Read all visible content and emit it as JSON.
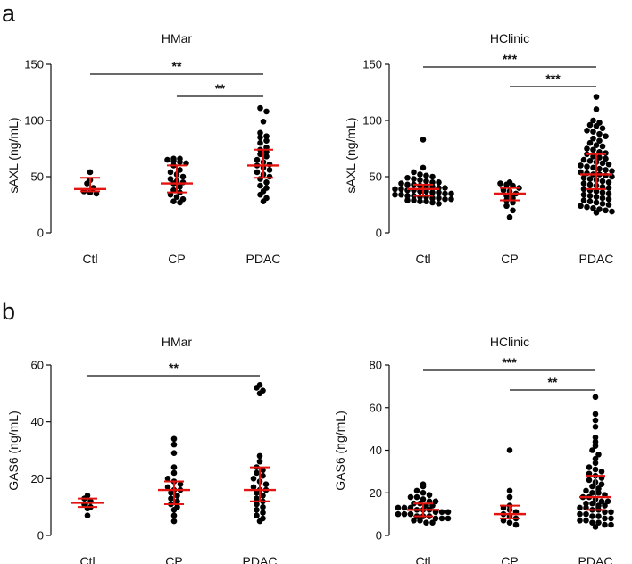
{
  "panel_labels": [
    "a",
    "b"
  ],
  "chart_data": [
    {
      "panel": "a",
      "type": "scatter",
      "title": "HMar",
      "ylabel": "sAXL (ng/mL)",
      "categories": [
        "Ctl",
        "CP",
        "PDAC"
      ],
      "ylim": [
        0,
        150
      ],
      "yticks": [
        0,
        50,
        100,
        150
      ],
      "summary": [
        {
          "category": "Ctl",
          "median": 39,
          "q1": 37,
          "q3": 49
        },
        {
          "category": "CP",
          "median": 44,
          "q1": 36,
          "q3": 60
        },
        {
          "category": "PDAC",
          "median": 60,
          "q1": 49,
          "q3": 74
        }
      ],
      "points": [
        [
          54,
          47,
          44,
          40,
          37,
          36,
          35
        ],
        [
          66,
          66,
          65,
          64,
          63,
          62,
          60,
          56,
          54,
          52,
          50,
          48,
          46,
          45,
          44,
          41,
          38,
          36,
          34,
          32,
          30,
          28,
          27
        ],
        [
          111,
          108,
          99,
          89,
          86,
          85,
          82,
          80,
          76,
          74,
          72,
          70,
          68,
          65,
          63,
          61,
          60,
          58,
          56,
          54,
          52,
          50,
          48,
          45,
          42,
          40,
          37,
          34,
          31,
          28
        ]
      ],
      "significance": [
        {
          "from": "Ctl",
          "to": "PDAC",
          "label": "**"
        },
        {
          "from": "CP",
          "to": "PDAC",
          "label": "**"
        }
      ],
      "colors": {
        "points": "#000000",
        "summary": "#e3140f"
      }
    },
    {
      "panel": "a",
      "type": "scatter",
      "title": "HClinic",
      "ylabel": "sAXL (ng/mL)",
      "categories": [
        "Ctl",
        "CP",
        "PDAC"
      ],
      "ylim": [
        0,
        150
      ],
      "yticks": [
        0,
        50,
        100,
        150
      ],
      "summary": [
        {
          "category": "Ctl",
          "median": 39,
          "q1": 33,
          "q3": 43
        },
        {
          "category": "CP",
          "median": 35,
          "q1": 29,
          "q3": 40
        },
        {
          "category": "PDAC",
          "median": 52,
          "q1": 39,
          "q3": 70
        }
      ],
      "points": [
        [
          83,
          58,
          54,
          52,
          51,
          50,
          49,
          48,
          47,
          46,
          45,
          45,
          44,
          43,
          43,
          42,
          41,
          41,
          40,
          40,
          39,
          39,
          38,
          38,
          37,
          37,
          36,
          36,
          35,
          35,
          34,
          34,
          33,
          33,
          32,
          32,
          31,
          31,
          30,
          30,
          29,
          29,
          28,
          28,
          27,
          26
        ],
        [
          45,
          44,
          43,
          42,
          40,
          38,
          37,
          35,
          33,
          31,
          29,
          27,
          24,
          20,
          14
        ],
        [
          121,
          110,
          100,
          98,
          96,
          95,
          93,
          91,
          90,
          88,
          86,
          84,
          82,
          80,
          78,
          77,
          75,
          74,
          72,
          71,
          70,
          68,
          67,
          66,
          65,
          64,
          63,
          62,
          61,
          60,
          59,
          58,
          57,
          56,
          55,
          54,
          53,
          52,
          52,
          51,
          50,
          49,
          48,
          47,
          46,
          45,
          44,
          43,
          42,
          41,
          40,
          39,
          38,
          37,
          36,
          35,
          34,
          33,
          32,
          31,
          30,
          29,
          28,
          27,
          26,
          25,
          24,
          23,
          22,
          21,
          20,
          19,
          18
        ]
      ],
      "significance": [
        {
          "from": "Ctl",
          "to": "PDAC",
          "label": "***"
        },
        {
          "from": "CP",
          "to": "PDAC",
          "label": "***"
        }
      ],
      "colors": {
        "points": "#000000",
        "summary": "#e3140f"
      }
    },
    {
      "panel": "b",
      "type": "scatter",
      "title": "HMar",
      "ylabel": "GAS6 (ng/mL)",
      "categories": [
        "Ctl",
        "CP",
        "PDAC"
      ],
      "ylim": [
        0,
        60
      ],
      "yticks": [
        0,
        20,
        40,
        60
      ],
      "summary": [
        {
          "category": "Ctl",
          "median": 11.5,
          "q1": 10,
          "q3": 13
        },
        {
          "category": "CP",
          "median": 16,
          "q1": 11,
          "q3": 19
        },
        {
          "category": "PDAC",
          "median": 16,
          "q1": 12,
          "q3": 24
        }
      ],
      "points": [
        [
          14,
          13,
          12,
          11,
          10,
          9.5,
          7
        ],
        [
          34,
          32,
          29,
          24,
          22,
          20,
          19,
          18,
          17,
          16,
          16,
          15,
          14,
          13,
          12,
          11,
          10,
          9,
          7,
          5
        ],
        [
          53,
          52,
          51,
          50,
          28,
          26,
          24,
          23,
          22,
          21,
          20,
          19,
          18,
          17,
          16,
          16,
          15,
          14,
          13,
          12,
          11,
          10,
          9,
          8,
          7,
          6,
          5
        ]
      ],
      "significance": [
        {
          "from": "Ctl",
          "to": "PDAC",
          "label": "**"
        }
      ],
      "colors": {
        "points": "#000000",
        "summary": "#e3140f"
      }
    },
    {
      "panel": "b",
      "type": "scatter",
      "title": "HClinic",
      "ylabel": "GAS6 (ng/mL)",
      "categories": [
        "Ctl",
        "CP",
        "PDAC"
      ],
      "ylim": [
        0,
        80
      ],
      "yticks": [
        0,
        20,
        40,
        60,
        80
      ],
      "summary": [
        {
          "category": "Ctl",
          "median": 12,
          "q1": 9,
          "q3": 15
        },
        {
          "category": "CP",
          "median": 10,
          "q1": 8,
          "q3": 14
        },
        {
          "category": "PDAC",
          "median": 18,
          "q1": 12,
          "q3": 28
        }
      ],
      "points": [
        [
          24,
          23,
          21,
          20,
          19,
          18,
          18,
          17,
          16,
          16,
          15,
          15,
          14,
          14,
          13,
          13,
          13,
          12,
          12,
          12,
          11,
          11,
          11,
          10,
          10,
          10,
          9,
          9,
          9,
          8,
          8,
          8,
          7,
          7,
          6,
          6
        ],
        [
          40,
          21,
          18,
          14,
          13,
          12,
          11,
          10,
          9,
          8,
          7,
          6,
          5
        ],
        [
          65,
          57,
          54,
          51,
          46,
          44,
          42,
          40,
          38,
          36,
          34,
          32,
          31,
          30,
          29,
          28,
          27,
          26,
          25,
          24,
          23,
          22,
          21,
          20,
          20,
          19,
          18,
          18,
          17,
          16,
          16,
          15,
          15,
          14,
          14,
          13,
          13,
          12,
          12,
          11,
          11,
          10,
          10,
          9,
          9,
          8,
          8,
          7,
          7,
          6,
          6,
          5,
          5,
          4
        ]
      ],
      "significance": [
        {
          "from": "Ctl",
          "to": "PDAC",
          "label": "***"
        },
        {
          "from": "CP",
          "to": "PDAC",
          "label": "**"
        }
      ],
      "colors": {
        "points": "#000000",
        "summary": "#e3140f"
      }
    }
  ]
}
